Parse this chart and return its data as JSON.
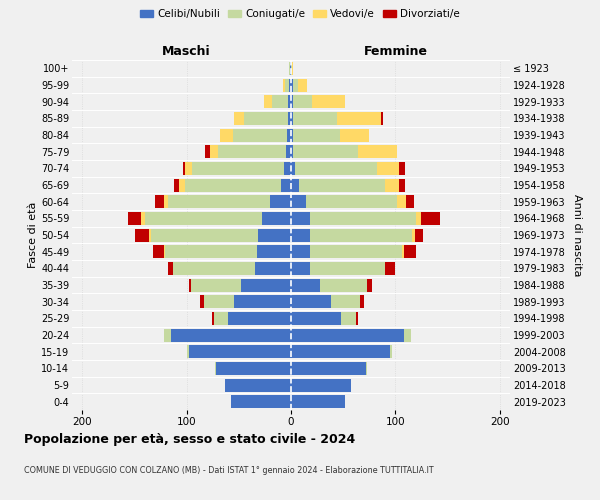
{
  "age_groups": [
    "0-4",
    "5-9",
    "10-14",
    "15-19",
    "20-24",
    "25-29",
    "30-34",
    "35-39",
    "40-44",
    "45-49",
    "50-54",
    "55-59",
    "60-64",
    "65-69",
    "70-74",
    "75-79",
    "80-84",
    "85-89",
    "90-94",
    "95-99",
    "100+"
  ],
  "birth_years": [
    "2019-2023",
    "2014-2018",
    "2009-2013",
    "2004-2008",
    "1999-2003",
    "1994-1998",
    "1989-1993",
    "1984-1988",
    "1979-1983",
    "1974-1978",
    "1969-1973",
    "1964-1968",
    "1959-1963",
    "1954-1958",
    "1949-1953",
    "1944-1948",
    "1939-1943",
    "1934-1938",
    "1929-1933",
    "1924-1928",
    "≤ 1923"
  ],
  "maschi": {
    "celibi": [
      58,
      63,
      72,
      98,
      115,
      60,
      55,
      48,
      35,
      33,
      32,
      28,
      20,
      10,
      7,
      5,
      4,
      3,
      3,
      2,
      1
    ],
    "coniugati": [
      0,
      0,
      1,
      2,
      7,
      14,
      28,
      48,
      78,
      88,
      102,
      112,
      98,
      92,
      88,
      65,
      52,
      42,
      15,
      4,
      1
    ],
    "vedovi": [
      0,
      0,
      0,
      0,
      0,
      0,
      0,
      0,
      0,
      1,
      2,
      4,
      4,
      5,
      7,
      8,
      12,
      10,
      8,
      2,
      0
    ],
    "divorziati": [
      0,
      0,
      0,
      0,
      0,
      2,
      4,
      2,
      5,
      10,
      14,
      12,
      8,
      5,
      2,
      4,
      0,
      0,
      0,
      0,
      0
    ]
  },
  "femmine": {
    "nubili": [
      52,
      58,
      72,
      95,
      108,
      48,
      38,
      28,
      18,
      18,
      18,
      18,
      14,
      8,
      4,
      2,
      2,
      2,
      2,
      2,
      0
    ],
    "coniugate": [
      0,
      0,
      1,
      2,
      7,
      14,
      28,
      45,
      72,
      88,
      98,
      102,
      88,
      82,
      78,
      62,
      45,
      42,
      18,
      5,
      1
    ],
    "vedove": [
      0,
      0,
      0,
      0,
      0,
      0,
      0,
      0,
      0,
      2,
      3,
      5,
      8,
      14,
      22,
      38,
      28,
      42,
      32,
      8,
      1
    ],
    "divorziate": [
      0,
      0,
      0,
      0,
      0,
      2,
      4,
      5,
      10,
      12,
      8,
      18,
      8,
      5,
      5,
      0,
      0,
      2,
      0,
      0,
      0
    ]
  },
  "colors": {
    "celibi": "#4472c4",
    "coniugati": "#c5d9a0",
    "vedovi": "#ffd966",
    "divorziati": "#c00000"
  },
  "title": "Popolazione per età, sesso e stato civile - 2024",
  "subtitle": "COMUNE DI VEDUGGIO CON COLZANO (MB) - Dati ISTAT 1° gennaio 2024 - Elaborazione TUTTITALIA.IT",
  "xlabel_left": "Maschi",
  "xlabel_right": "Femmine",
  "ylabel_left": "Fasce di età",
  "ylabel_right": "Anni di nascita",
  "legend_labels": [
    "Celibi/Nubili",
    "Coniugati/e",
    "Vedovi/e",
    "Divorziati/e"
  ],
  "xlim": 210,
  "background_color": "#f0f0f0"
}
